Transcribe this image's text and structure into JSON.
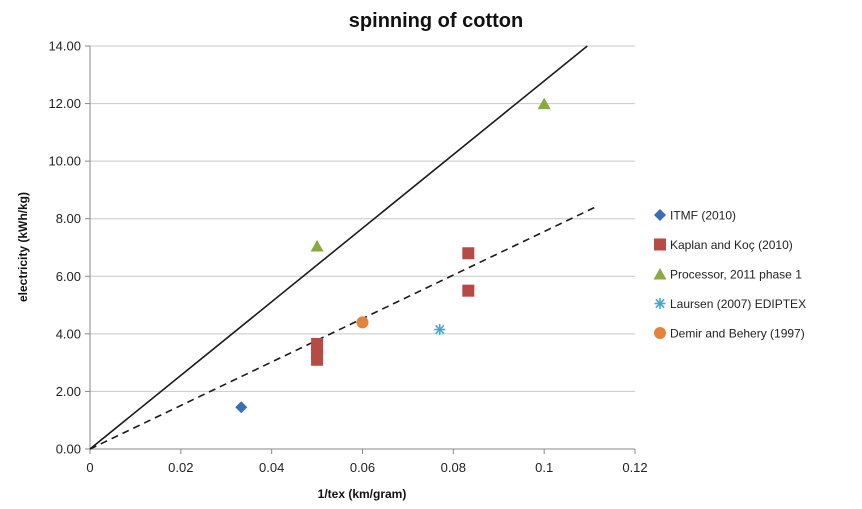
{
  "chart_data": {
    "type": "scatter",
    "title": "spinning of cotton",
    "xlabel": "1/tex (km/gram)",
    "ylabel": "electricity (kWh/kg)",
    "xlim": [
      0,
      0.12
    ],
    "ylim": [
      0,
      14
    ],
    "x_ticks": [
      "0",
      "0.02",
      "0.04",
      "0.06",
      "0.08",
      "0.1",
      "0.12"
    ],
    "y_ticks": [
      "0.00",
      "2.00",
      "4.00",
      "6.00",
      "8.00",
      "10.00",
      "12.00",
      "14.00"
    ],
    "grid": "horizontal",
    "legend_position": "right",
    "series": [
      {
        "name": "ITMF (2010)",
        "marker": "diamond",
        "color": "#3a6eb5",
        "points": [
          [
            0.0333,
            1.45
          ]
        ]
      },
      {
        "name": "Kaplan and Koç (2010)",
        "marker": "square",
        "color": "#b84a45",
        "points": [
          [
            0.05,
            3.65
          ],
          [
            0.05,
            3.4
          ],
          [
            0.05,
            3.25
          ],
          [
            0.05,
            3.1
          ],
          [
            0.0833,
            6.8
          ],
          [
            0.0833,
            5.5
          ]
        ]
      },
      {
        "name": "Processor, 2011 phase 1",
        "marker": "triangle",
        "color": "#8aaa3f",
        "points": [
          [
            0.05,
            7.05
          ],
          [
            0.1,
            12.0
          ]
        ]
      },
      {
        "name": "Laursen (2007) EDIPTEX",
        "marker": "asterisk",
        "color": "#4aa6c9",
        "points": [
          [
            0.077,
            4.15
          ]
        ]
      },
      {
        "name": "Demir and Behery (1997)",
        "marker": "circle",
        "color": "#e4843c",
        "points": [
          [
            0.06,
            4.4
          ]
        ]
      }
    ],
    "lines": [
      {
        "style": "solid",
        "color": "#1a1a1a",
        "from": [
          0,
          0
        ],
        "to": [
          0.1095,
          14.0
        ]
      },
      {
        "style": "dashed",
        "color": "#1a1a1a",
        "from": [
          0,
          0
        ],
        "to": [
          0.1112,
          8.4
        ]
      }
    ]
  }
}
